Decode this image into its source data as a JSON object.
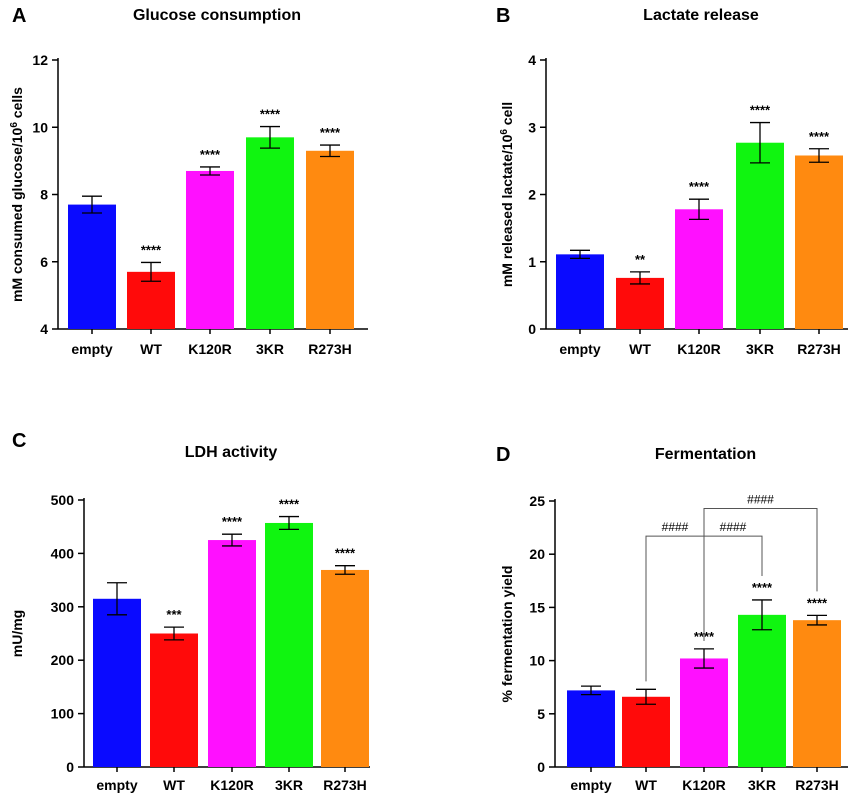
{
  "chart_data": [
    {
      "panel": "A",
      "type": "bar",
      "title": "Glucose consumption",
      "ylabel": [
        "mM consumed glucose/10",
        "6",
        " cells"
      ],
      "categories": [
        "empty",
        "WT",
        "K120R",
        "3KR",
        "R273H"
      ],
      "values": [
        7.7,
        5.7,
        8.7,
        9.7,
        9.3
      ],
      "errors": [
        0.25,
        0.28,
        0.12,
        0.32,
        0.17
      ],
      "significance": [
        "",
        "****",
        "****",
        "****",
        "****"
      ],
      "colors": [
        "#0a0aff",
        "#ff0a0a",
        "#ff10ff",
        "#10f510",
        "#ff8a10"
      ],
      "ylim": [
        4,
        12
      ],
      "yticks": [
        4,
        6,
        8,
        10,
        12
      ],
      "ytick_labels": [
        "4",
        "6",
        "8",
        "10",
        "12"
      ],
      "brackets": []
    },
    {
      "panel": "B",
      "type": "bar",
      "title": "Lactate release",
      "ylabel": [
        "mM released lactate/10",
        "6",
        " cell"
      ],
      "categories": [
        "empty",
        "WT",
        "K120R",
        "3KR",
        "R273H"
      ],
      "values": [
        1.11,
        0.76,
        1.78,
        2.77,
        2.58
      ],
      "errors": [
        0.06,
        0.09,
        0.15,
        0.3,
        0.1
      ],
      "significance": [
        "",
        "**",
        "****",
        "****",
        "****"
      ],
      "colors": [
        "#0a0aff",
        "#ff0a0a",
        "#ff10ff",
        "#10f510",
        "#ff8a10"
      ],
      "ylim": [
        0,
        4
      ],
      "yticks": [
        0,
        1,
        2,
        3,
        4
      ],
      "ytick_labels": [
        "0",
        "1",
        "2",
        "3",
        "4"
      ],
      "brackets": []
    },
    {
      "panel": "C",
      "type": "bar",
      "title": "LDH activity",
      "ylabel": [
        "mU/mg"
      ],
      "categories": [
        "empty",
        "WT",
        "K120R",
        "3KR",
        "R273H"
      ],
      "values": [
        315,
        250,
        425,
        457,
        369
      ],
      "errors": [
        30,
        12,
        11,
        12,
        8
      ],
      "significance": [
        "",
        "***",
        "****",
        "****",
        "****"
      ],
      "colors": [
        "#0a0aff",
        "#ff0a0a",
        "#ff10ff",
        "#10f510",
        "#ff8a10"
      ],
      "ylim": [
        0,
        500
      ],
      "yticks": [
        0,
        100,
        200,
        300,
        400,
        500
      ],
      "ytick_labels": [
        "0",
        "100",
        "200",
        "300",
        "400",
        "500"
      ],
      "brackets": []
    },
    {
      "panel": "D",
      "type": "bar",
      "title": "Fermentation",
      "ylabel": [
        "% fermentation yield"
      ],
      "categories": [
        "empty",
        "WT",
        "K120R",
        "3KR",
        "R273H"
      ],
      "values": [
        7.2,
        6.6,
        10.2,
        14.3,
        13.8
      ],
      "errors": [
        0.4,
        0.7,
        0.9,
        1.4,
        0.45
      ],
      "significance": [
        "",
        "",
        "****",
        "****",
        "****"
      ],
      "colors": [
        "#0a0aff",
        "#ff0a0a",
        "#ff10ff",
        "#10f510",
        "#ff8a10"
      ],
      "ylim": [
        0,
        25
      ],
      "yticks": [
        0,
        5,
        10,
        15,
        20,
        25
      ],
      "ytick_labels": [
        "0",
        "5",
        "10",
        "15",
        "20",
        "25"
      ],
      "brackets": [
        {
          "from": 1,
          "to": 2,
          "level": 21.7,
          "label": "####"
        },
        {
          "from": 2,
          "to": 3,
          "level": 21.7,
          "label": "####"
        },
        {
          "from": 2,
          "to": 4,
          "level": 24.3,
          "label": "####"
        }
      ]
    }
  ]
}
